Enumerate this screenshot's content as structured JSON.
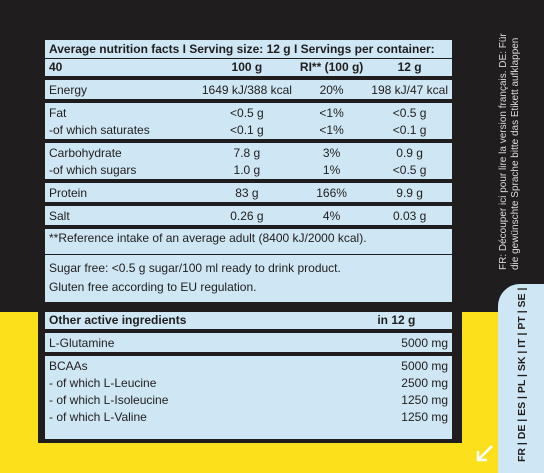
{
  "nutrition": {
    "title": "Average nutrition facts I Serving size: 12 g I Servings per container: 40",
    "columns": [
      "100 g",
      "RI** (100 g)",
      "12 g"
    ],
    "groups": [
      [
        [
          "Energy",
          "1649 kJ/388 kcal",
          "20%",
          "198 kJ/47 kcal"
        ]
      ],
      [
        [
          "Fat",
          "<0.5 g",
          "<1%",
          "<0.5 g"
        ],
        [
          "-of which saturates",
          "<0.1 g",
          "<1%",
          "<0.1 g"
        ]
      ],
      [
        [
          "Carbohydrate",
          "7.8 g",
          "3%",
          "0.9 g"
        ],
        [
          "-of which sugars",
          "1.0 g",
          "1%",
          "<0.5 g"
        ]
      ],
      [
        [
          "Protein",
          "83 g",
          "166%",
          "9.9 g"
        ]
      ],
      [
        [
          "Salt",
          "0.26 g",
          "4%",
          "0.03 g"
        ]
      ]
    ],
    "footnote": "**Reference intake of an average adult (8400 kJ/2000 kcal).",
    "notes": [
      "Sugar free: <0.5 g sugar/100 ml ready to drink product.",
      "Gluten free according to EU regulation."
    ]
  },
  "ingredients": {
    "header": [
      "Other active ingredients",
      "in 12 g"
    ],
    "groups": [
      [
        [
          "L-Glutamine",
          "5000 mg"
        ]
      ],
      [
        [
          "BCAAs",
          "5000 mg"
        ],
        [
          "- of which L-Leucine",
          "2500 mg"
        ],
        [
          "- of which L-Isoleucine",
          "1250 mg"
        ],
        [
          "- of which L-Valine",
          "1250 mg"
        ]
      ]
    ]
  },
  "side_note": "FR: Découper ici pour lire la version français. DE: Für die gewünschte Sprache bitte das Etikett aufklappen",
  "languages": "FR | DE | ES | PL | SK | IT | PT | SE | HU"
}
